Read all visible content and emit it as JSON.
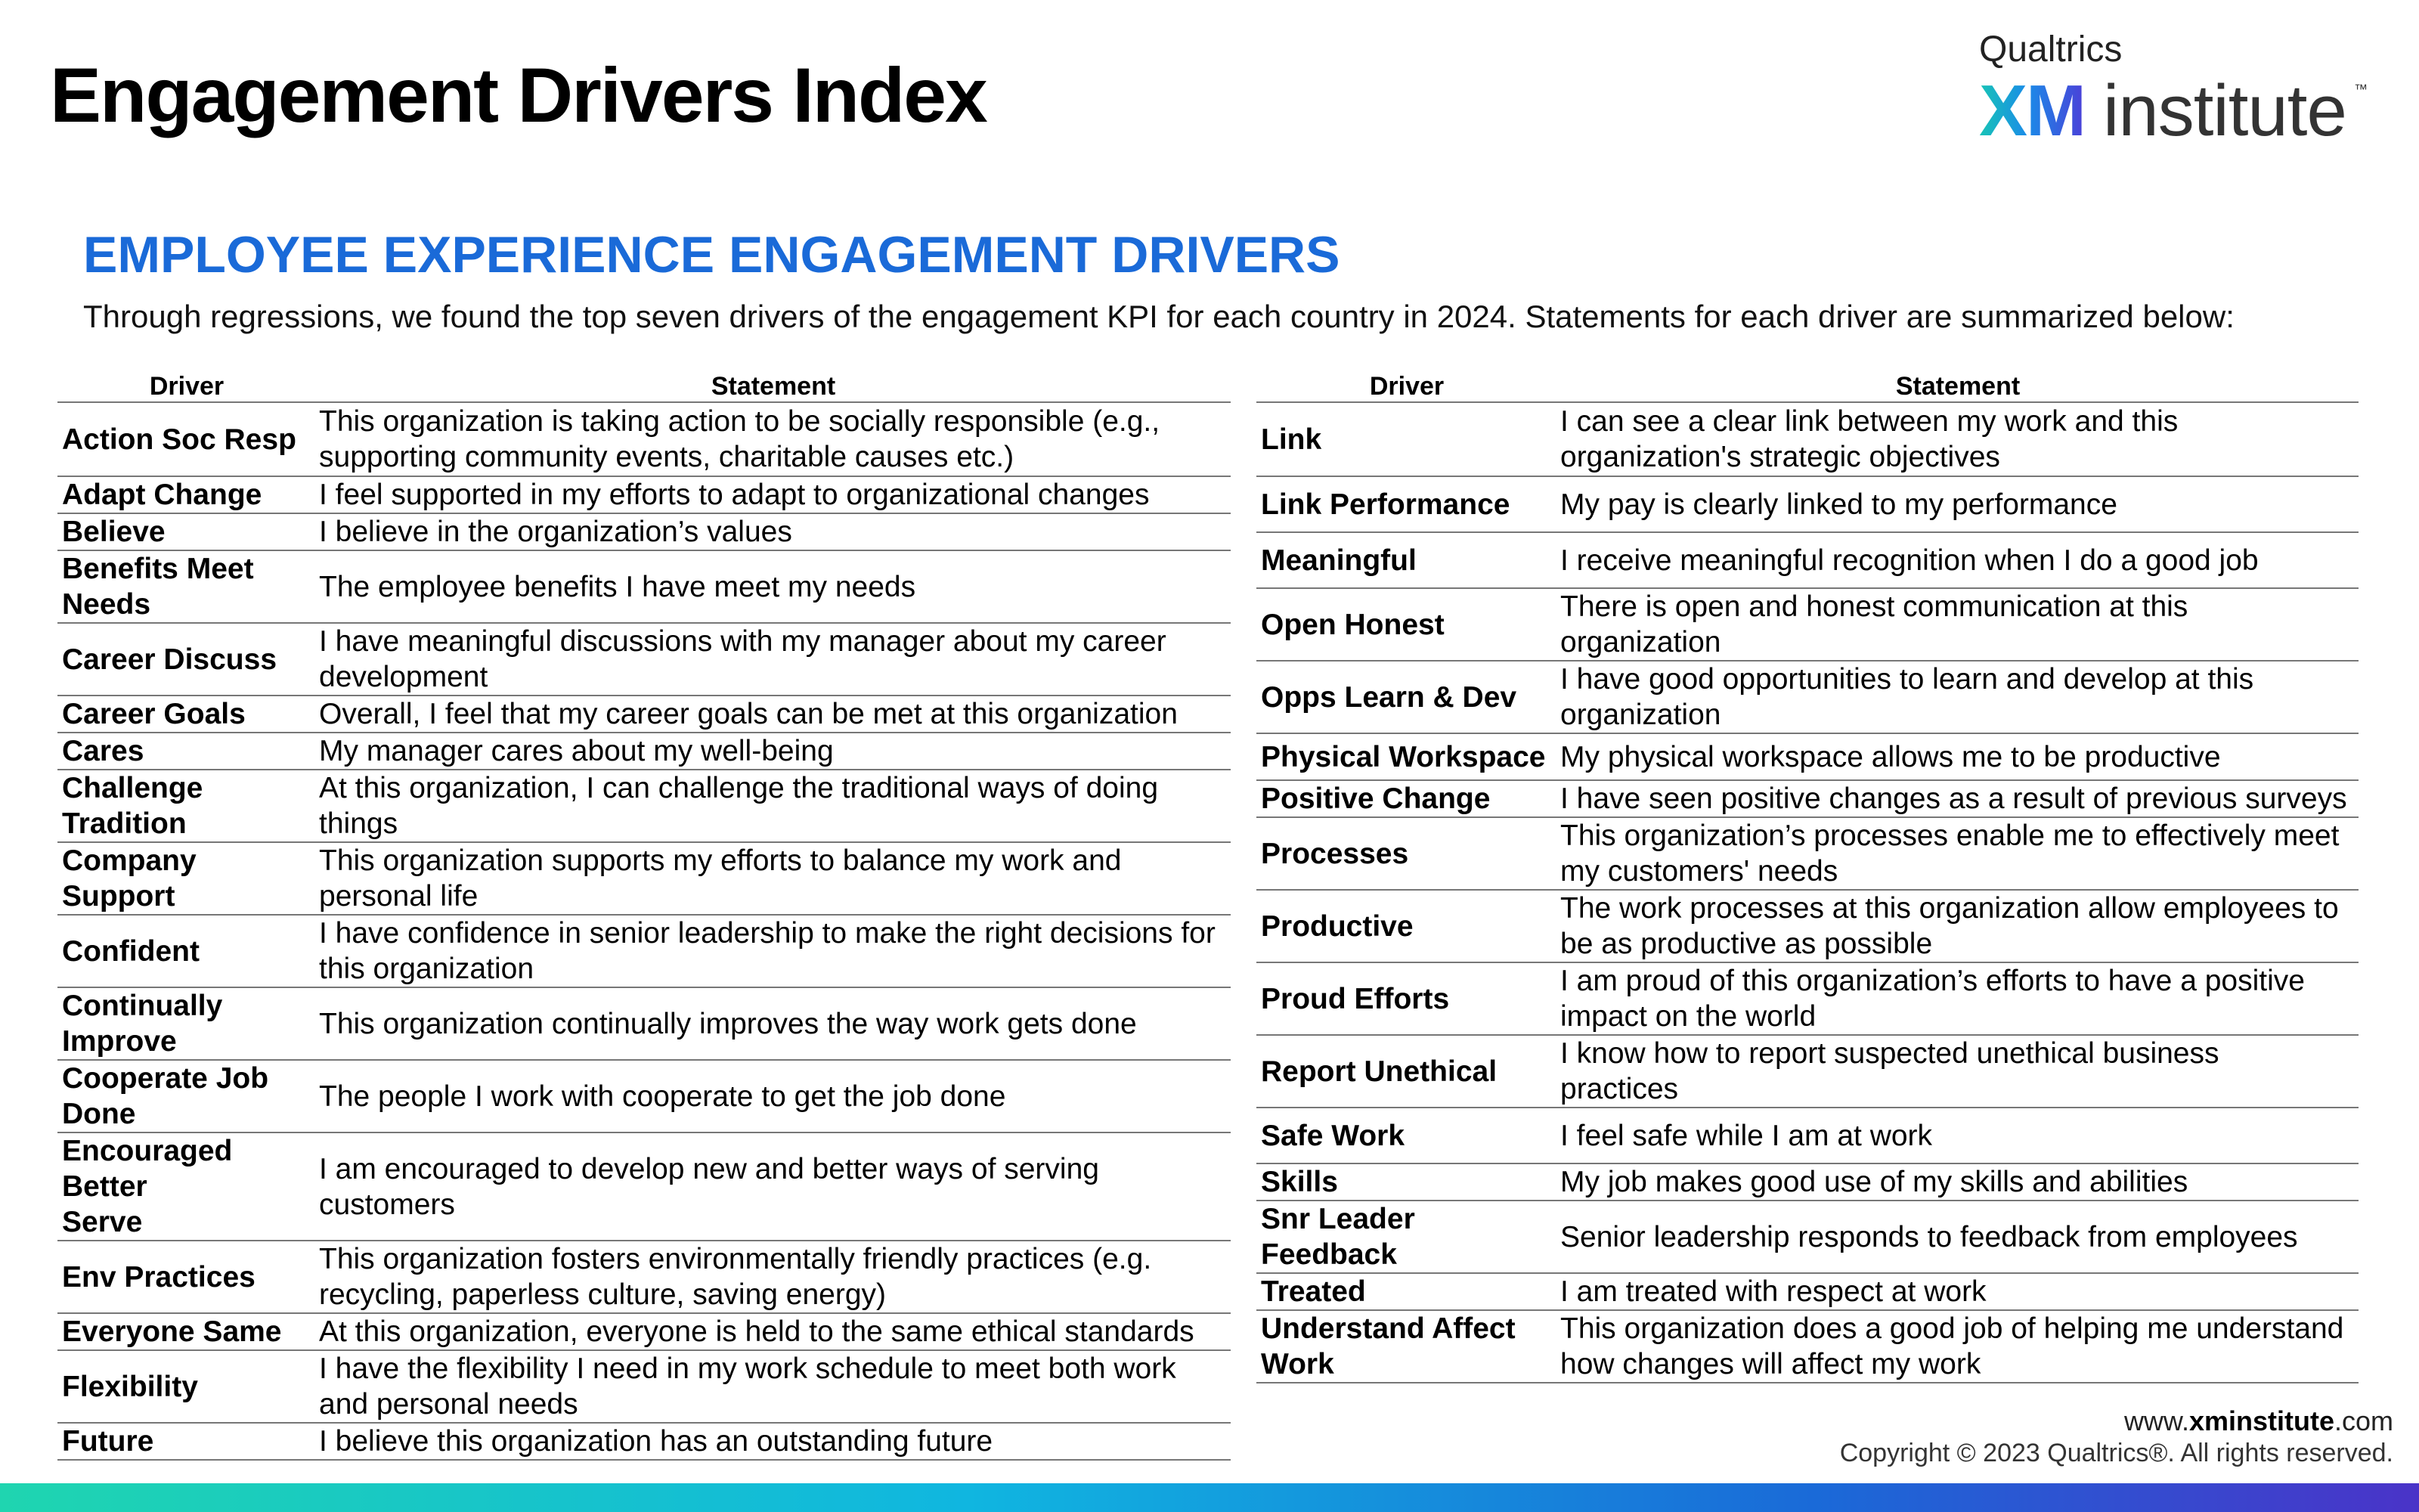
{
  "header": {
    "title": "Engagement Drivers Index",
    "logo": {
      "top_word": "Qualtrics",
      "xm": "XM",
      "word": "institute",
      "tm": "™"
    }
  },
  "section": {
    "subtitle": "EMPLOYEE EXPERIENCE ENGAGEMENT DRIVERS",
    "intro": "Through regressions, we found the top seven drivers of the engagement KPI for each country in 2024. Statements for each driver are summarized below:"
  },
  "table_headers": {
    "driver": "Driver",
    "statement": "Statement"
  },
  "left_rows": [
    {
      "driver": [
        "Action Soc Resp"
      ],
      "statement": [
        "This organization is taking action to be socially responsible (e.g.,",
        "supporting community events, charitable causes etc.)"
      ]
    },
    {
      "driver": [
        "Adapt Change"
      ],
      "statement": [
        "I feel supported in my efforts to adapt to organizational changes"
      ]
    },
    {
      "driver": [
        "Believe"
      ],
      "statement": [
        "I believe in the organization’s values"
      ]
    },
    {
      "driver": [
        "Benefits Meet",
        "Needs"
      ],
      "statement": [
        "The employee benefits I have meet my needs"
      ]
    },
    {
      "driver": [
        "Career Discuss"
      ],
      "statement": [
        "I have meaningful discussions with my manager about my career",
        "development"
      ]
    },
    {
      "driver": [
        "Career Goals"
      ],
      "statement": [
        "Overall, I feel that my career goals can be met at this organization"
      ]
    },
    {
      "driver": [
        "Cares"
      ],
      "statement": [
        "My manager cares about my well-being"
      ]
    },
    {
      "driver": [
        "Challenge",
        "Tradition"
      ],
      "statement": [
        "At this organization, I can challenge the traditional ways of doing",
        "things"
      ]
    },
    {
      "driver": [
        "Company Support"
      ],
      "statement": [
        "This organization supports my efforts to balance my work and",
        "personal life"
      ]
    },
    {
      "driver": [
        "Confident"
      ],
      "statement": [
        "I have confidence in senior leadership to make the right decisions for",
        "this organization"
      ]
    },
    {
      "driver": [
        "Continually",
        "Improve"
      ],
      "statement": [
        "This organization continually improves the way work gets done"
      ]
    },
    {
      "driver": [
        "Cooperate Job",
        "Done"
      ],
      "statement": [
        "The people I work with cooperate to get the job done"
      ]
    },
    {
      "driver": [
        "Encouraged Better",
        "Serve"
      ],
      "statement": [
        "I am encouraged to develop new and better ways of serving",
        "customers"
      ]
    },
    {
      "driver": [
        "Env Practices"
      ],
      "statement": [
        "This organization fosters environmentally friendly practices (e.g.",
        "recycling, paperless culture, saving energy)"
      ]
    },
    {
      "driver": [
        "Everyone Same"
      ],
      "statement": [
        "At this organization, everyone is held to the same ethical standards"
      ]
    },
    {
      "driver": [
        "Flexibility"
      ],
      "statement": [
        "I have the flexibility I need in my work schedule to meet both work",
        "and personal needs"
      ]
    },
    {
      "driver": [
        "Future"
      ],
      "statement": [
        "I believe this organization has an outstanding future"
      ]
    }
  ],
  "right_rows": [
    {
      "driver": [
        "Link"
      ],
      "statement": [
        "I can see a clear link between my work and this",
        "organization's strategic objectives"
      ]
    },
    {
      "driver": [
        "Link Performance"
      ],
      "statement": [
        "My pay is clearly linked to my performance"
      ]
    },
    {
      "driver": [
        "Meaningful"
      ],
      "statement": [
        "I receive meaningful recognition when I do a good job"
      ]
    },
    {
      "driver": [
        "Open Honest"
      ],
      "statement": [
        "There is open and honest communication at this",
        "organization"
      ]
    },
    {
      "driver": [
        "Opps Learn & Dev"
      ],
      "statement": [
        "I have good opportunities to learn and develop at this",
        "organization"
      ]
    },
    {
      "driver": [
        "Physical Workspace"
      ],
      "statement": [
        "My physical workspace allows me to be productive"
      ]
    },
    {
      "driver": [
        "Positive Change"
      ],
      "statement": [
        "I have seen positive changes as a result of previous surveys"
      ]
    },
    {
      "driver": [
        "Processes"
      ],
      "statement": [
        "This organization’s processes enable me to effectively meet",
        "my customers' needs"
      ]
    },
    {
      "driver": [
        "Productive"
      ],
      "statement": [
        "The work processes at this organization allow employees to",
        "be as productive as possible"
      ]
    },
    {
      "driver": [
        "Proud Efforts"
      ],
      "statement": [
        "I am proud of this organization’s efforts to have a positive",
        "impact on the world"
      ]
    },
    {
      "driver": [
        "Report Unethical"
      ],
      "statement": [
        "I know how to report suspected unethical business",
        "practices"
      ]
    },
    {
      "driver": [
        "Safe Work"
      ],
      "statement": [
        "I feel safe while I am at work"
      ]
    },
    {
      "driver": [
        "Skills"
      ],
      "statement": [
        "My job makes good use of my skills and abilities"
      ]
    },
    {
      "driver": [
        "Snr Leader Feedback"
      ],
      "statement": [
        "Senior leadership responds to feedback from employees"
      ]
    },
    {
      "driver": [
        "Treated"
      ],
      "statement": [
        "I am treated with respect at work"
      ]
    },
    {
      "driver": [
        "Understand Affect",
        "Work"
      ],
      "statement": [
        "This organization does a good job of helping me understand",
        "how changes will affect my work"
      ]
    }
  ],
  "footer": {
    "url_prefix": "www.",
    "url_bold": "xminstitute",
    "url_suffix": ".com",
    "copyright": "Copyright © 2023 Qualtrics®. All rights reserved."
  }
}
